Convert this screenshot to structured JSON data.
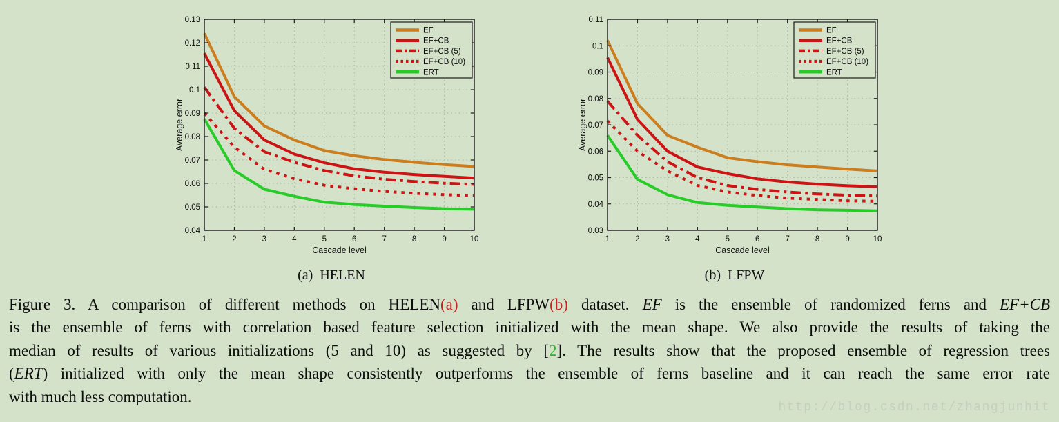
{
  "colors": {
    "background": "#d5e2ca",
    "axis": "#1a1a1a",
    "grid": "#a9b49e",
    "text": "#0d0d0d",
    "series_orange": "#cc7e1e",
    "series_red": "#cc1414",
    "series_green": "#28cc28",
    "caption_red": "#cc2020",
    "caption_green": "#2ab52a",
    "watermark": "#c6cfc0"
  },
  "chart_data": [
    {
      "type": "line",
      "title": "(a)  HELEN",
      "xlabel": "Cascade level",
      "ylabel": "Average error",
      "x": [
        1,
        2,
        3,
        4,
        5,
        6,
        7,
        8,
        9,
        10
      ],
      "xlim": [
        1,
        10
      ],
      "ylim": [
        0.04,
        0.13
      ],
      "ytick_step": 0.01,
      "grid": true,
      "legend_position": "top-right",
      "series": [
        {
          "name": "EF",
          "color": "#cc7e1e",
          "style": "solid",
          "values": [
            0.124,
            0.097,
            0.0845,
            0.0785,
            0.074,
            0.0718,
            0.0702,
            0.069,
            0.068,
            0.0672
          ]
        },
        {
          "name": "EF+CB",
          "color": "#cc1414",
          "style": "solid",
          "values": [
            0.1155,
            0.091,
            0.0785,
            0.0725,
            0.0688,
            0.0662,
            0.0648,
            0.0638,
            0.063,
            0.0623
          ]
        },
        {
          "name": "EF+CB (5)",
          "color": "#cc1414",
          "style": "dashdot",
          "values": [
            0.101,
            0.0835,
            0.0735,
            0.069,
            0.0655,
            0.0632,
            0.0618,
            0.0608,
            0.0601,
            0.0596
          ]
        },
        {
          "name": "EF+CB (10)",
          "color": "#cc1414",
          "style": "dotted",
          "values": [
            0.09,
            0.0755,
            0.066,
            0.062,
            0.0592,
            0.0577,
            0.0566,
            0.0558,
            0.0552,
            0.0548
          ]
        },
        {
          "name": "ERT",
          "color": "#28cc28",
          "style": "solid",
          "values": [
            0.0875,
            0.0655,
            0.0575,
            0.0545,
            0.052,
            0.051,
            0.0503,
            0.0497,
            0.0492,
            0.049
          ]
        }
      ]
    },
    {
      "type": "line",
      "title": "(b)  LFPW",
      "xlabel": "Cascade level",
      "ylabel": "Average error",
      "x": [
        1,
        2,
        3,
        4,
        5,
        6,
        7,
        8,
        9,
        10
      ],
      "xlim": [
        1,
        10
      ],
      "ylim": [
        0.03,
        0.11
      ],
      "ytick_step": 0.01,
      "grid": true,
      "legend_position": "top-right",
      "series": [
        {
          "name": "EF",
          "color": "#cc7e1e",
          "style": "solid",
          "values": [
            0.102,
            0.078,
            0.066,
            0.0615,
            0.0575,
            0.056,
            0.0548,
            0.054,
            0.0532,
            0.0525
          ]
        },
        {
          "name": "EF+CB",
          "color": "#cc1414",
          "style": "solid",
          "values": [
            0.0955,
            0.072,
            0.06,
            0.054,
            0.0515,
            0.0495,
            0.0483,
            0.0475,
            0.0469,
            0.0465
          ]
        },
        {
          "name": "EF+CB (5)",
          "color": "#cc1414",
          "style": "dashdot",
          "values": [
            0.079,
            0.066,
            0.056,
            0.05,
            0.047,
            0.0455,
            0.0445,
            0.0438,
            0.0433,
            0.043
          ]
        },
        {
          "name": "EF+CB (10)",
          "color": "#cc1414",
          "style": "dotted",
          "values": [
            0.0715,
            0.06,
            0.0525,
            0.047,
            0.0445,
            0.0432,
            0.0422,
            0.0417,
            0.0412,
            0.041
          ]
        },
        {
          "name": "ERT",
          "color": "#28cc28",
          "style": "solid",
          "values": [
            0.066,
            0.0493,
            0.0435,
            0.0405,
            0.0395,
            0.0388,
            0.0382,
            0.0378,
            0.0376,
            0.0374
          ]
        }
      ]
    }
  ],
  "caption": {
    "lines": [
      {
        "segments": [
          {
            "t": "Figure 3. A comparison of different methods on HELEN"
          },
          {
            "t": "(a)",
            "c": "caption_red"
          },
          {
            "t": " and LFPW"
          },
          {
            "t": "(b)",
            "c": "caption_red"
          },
          {
            "t": " dataset.  "
          },
          {
            "t": "EF",
            "i": true
          },
          {
            "t": " is the ensemble of randomized ferns and "
          },
          {
            "t": "EF+CB",
            "i": true
          }
        ]
      },
      {
        "segments": [
          {
            "t": "is the ensemble of ferns with correlation based feature selection initialized with the mean shape. We also provide the results of taking the"
          }
        ]
      },
      {
        "segments": [
          {
            "t": "median of results of various initializations (5 and 10) as suggested by ["
          },
          {
            "t": "2",
            "c": "caption_green"
          },
          {
            "t": "]. The results show that the proposed ensemble of regression trees"
          }
        ]
      },
      {
        "segments": [
          {
            "t": "("
          },
          {
            "t": "ERT",
            "i": true
          },
          {
            "t": ") initialized with only the mean shape consistently outperforms the ensemble of ferns baseline and it can reach the same error rate"
          }
        ]
      },
      {
        "segments": [
          {
            "t": "with much less computation."
          }
        ]
      }
    ]
  },
  "watermark": {
    "text": "http://blog.csdn.net/zhangjunhit"
  }
}
